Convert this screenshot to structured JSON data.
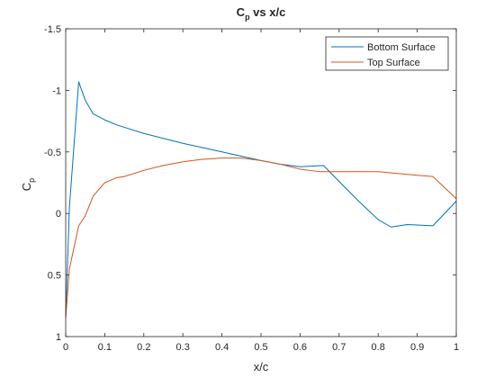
{
  "chart_data": {
    "type": "line",
    "title": "C",
    "title_sub": "p",
    "title_rest": " vs x/c",
    "xlabel": "x/c",
    "ylabel": "C",
    "ylabel_sub": "p",
    "xlim": [
      0,
      1
    ],
    "ylim": [
      -1.5,
      1
    ],
    "y_reversed": true,
    "grid": false,
    "legend_position": "top-right",
    "x_ticks": [
      0,
      0.1,
      0.2,
      0.3,
      0.4,
      0.5,
      0.6,
      0.7,
      0.8,
      0.9,
      1
    ],
    "x_tick_labels": [
      "0",
      "0.1",
      "0.2",
      "0.3",
      "0.4",
      "0.5",
      "0.6",
      "0.7",
      "0.8",
      "0.9",
      "1"
    ],
    "y_ticks": [
      -1.5,
      -1,
      -0.5,
      0,
      0.5,
      1
    ],
    "y_tick_labels": [
      "-1.5",
      "-1",
      "-0.5",
      "0",
      "0.5",
      "1"
    ],
    "series": [
      {
        "name": "Bottom Surface",
        "color": "#0072BD",
        "x": [
          0,
          0.0095,
          0.0333,
          0.05,
          0.07,
          0.1,
          0.13,
          0.2,
          0.3,
          0.4,
          0.5,
          0.55,
          0.6,
          0.66,
          0.7,
          0.75,
          0.8,
          0.833,
          0.875,
          0.94,
          1.0
        ],
        "y": [
          0.85,
          -0.05,
          -1.07,
          -0.92,
          -0.81,
          -0.76,
          -0.72,
          -0.65,
          -0.57,
          -0.5,
          -0.43,
          -0.4,
          -0.38,
          -0.39,
          -0.26,
          -0.1,
          0.05,
          0.11,
          0.09,
          0.1,
          -0.1
        ]
      },
      {
        "name": "Top Surface",
        "color": "#D95319",
        "x": [
          0,
          0.0095,
          0.0333,
          0.05,
          0.07,
          0.1,
          0.13,
          0.15,
          0.2,
          0.25,
          0.3,
          0.35,
          0.4,
          0.45,
          0.5,
          0.55,
          0.6,
          0.65,
          0.7,
          0.8,
          0.9,
          0.94,
          1.0
        ],
        "y": [
          0.85,
          0.45,
          0.1,
          0.02,
          -0.14,
          -0.25,
          -0.29,
          -0.3,
          -0.35,
          -0.39,
          -0.42,
          -0.44,
          -0.45,
          -0.45,
          -0.43,
          -0.4,
          -0.36,
          -0.34,
          -0.34,
          -0.34,
          -0.31,
          -0.3,
          -0.12
        ]
      }
    ]
  }
}
